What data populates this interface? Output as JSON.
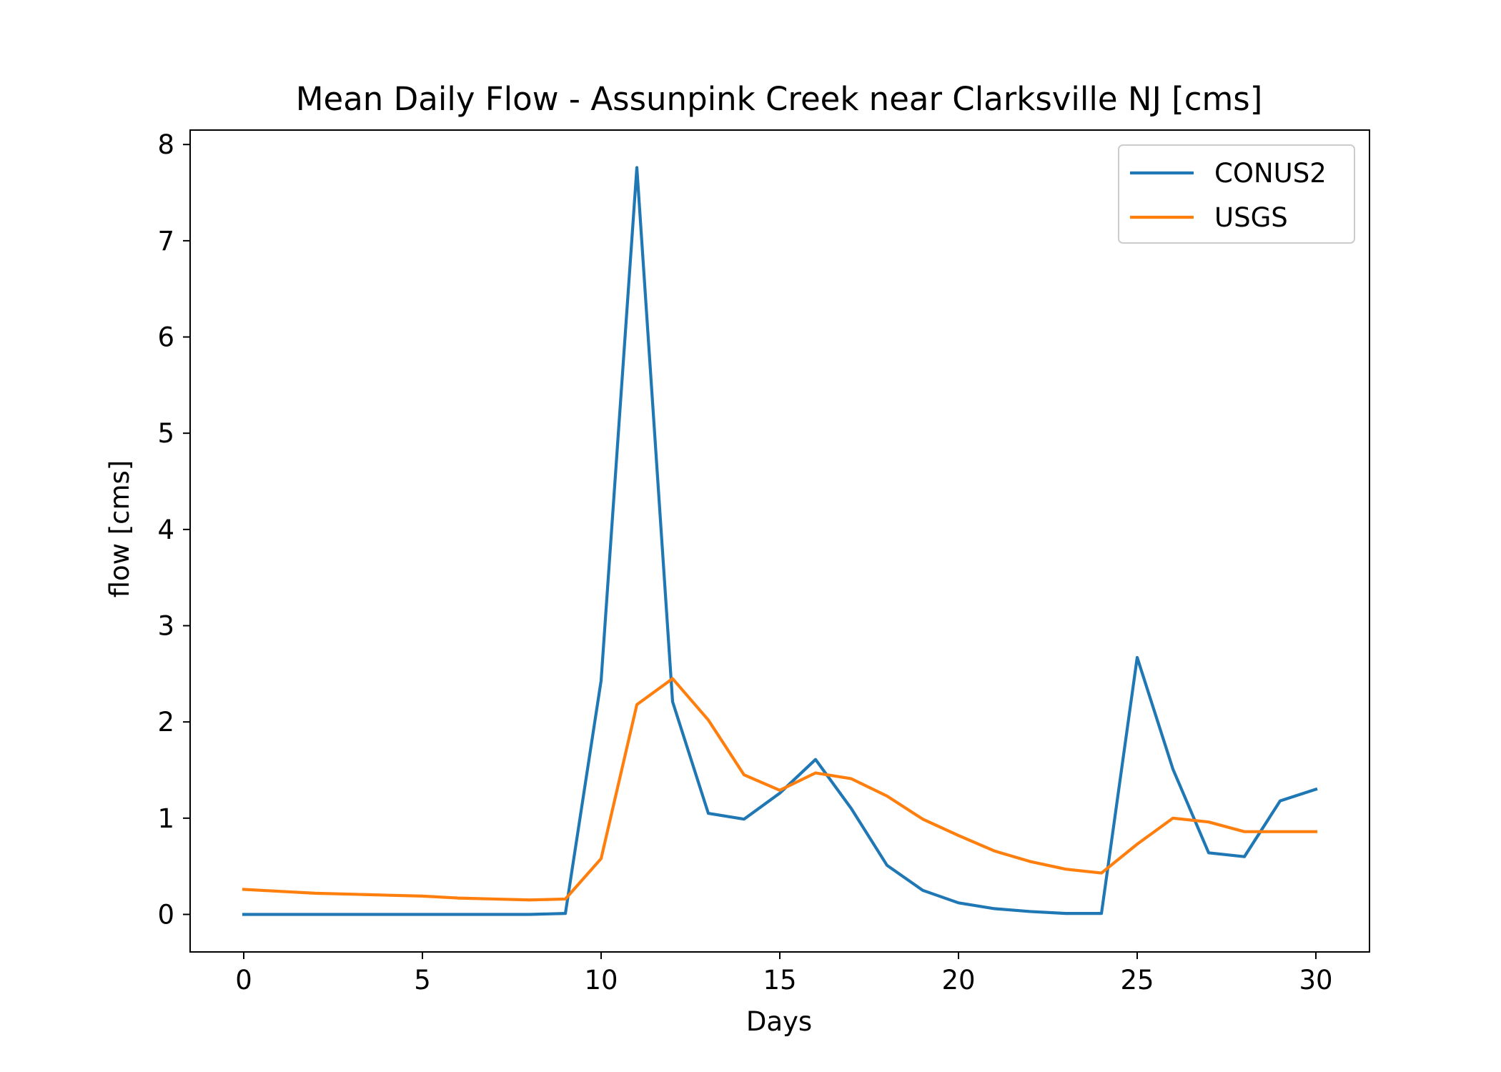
{
  "chart_data": {
    "type": "line",
    "title": "Mean Daily Flow - Assunpink Creek near Clarksville NJ [cms]",
    "xlabel": "Days",
    "ylabel": "flow [cms]",
    "xlim": [
      -1.5,
      31.5
    ],
    "ylim": [
      -0.39,
      8.15
    ],
    "xticks": [
      0,
      5,
      10,
      15,
      20,
      25,
      30
    ],
    "yticks": [
      0,
      1,
      2,
      3,
      4,
      5,
      6,
      7,
      8
    ],
    "grid": false,
    "legend_position": "top-right",
    "x": [
      0,
      1,
      2,
      3,
      4,
      5,
      6,
      7,
      8,
      9,
      10,
      11,
      12,
      13,
      14,
      15,
      16,
      17,
      18,
      19,
      20,
      21,
      22,
      23,
      24,
      25,
      26,
      27,
      28,
      29,
      30
    ],
    "series": [
      {
        "name": "CONUS2",
        "color": "#1f77b4",
        "values": [
          0.0,
          0.0,
          0.0,
          0.0,
          0.0,
          0.0,
          0.0,
          0.0,
          0.0,
          0.01,
          2.43,
          7.76,
          2.21,
          1.05,
          0.99,
          1.26,
          1.61,
          1.1,
          0.51,
          0.25,
          0.12,
          0.06,
          0.03,
          0.01,
          0.01,
          2.67,
          1.51,
          0.64,
          0.6,
          1.18,
          1.3
        ]
      },
      {
        "name": "USGS",
        "color": "#ff7f0e",
        "values": [
          0.26,
          0.24,
          0.22,
          0.21,
          0.2,
          0.19,
          0.17,
          0.16,
          0.15,
          0.16,
          0.58,
          2.18,
          2.45,
          2.02,
          1.45,
          1.29,
          1.47,
          1.41,
          1.23,
          0.99,
          0.82,
          0.66,
          0.55,
          0.47,
          0.43,
          0.73,
          1.0,
          0.96,
          0.86,
          0.86,
          0.86
        ]
      }
    ]
  }
}
